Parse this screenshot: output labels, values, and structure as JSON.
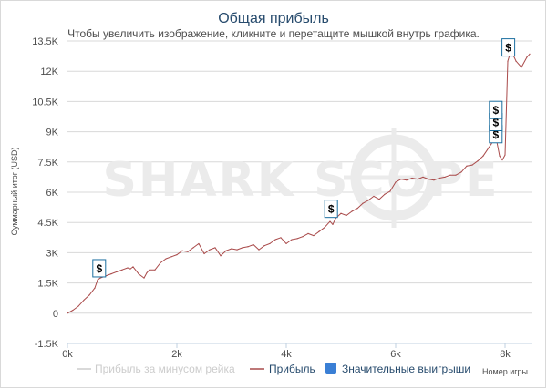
{
  "chart_data": {
    "type": "line",
    "title": "Общая прибыль",
    "subtitle": "Чтобы увеличить изображение, кликните и перетащите мышкой внутрь графика.",
    "ylabel": "Суммарный итог (USD)",
    "xlabel": "Номер игры",
    "watermark": "SHARK SCOPE",
    "xlim": [
      0,
      8500
    ],
    "ylim": [
      -1500,
      13500
    ],
    "x_ticks": [
      {
        "value": 0,
        "label": "0k"
      },
      {
        "value": 2000,
        "label": "2k"
      },
      {
        "value": 4000,
        "label": "4k"
      },
      {
        "value": 6000,
        "label": "6k"
      },
      {
        "value": 8000,
        "label": "8k"
      }
    ],
    "y_ticks": [
      {
        "value": -1500,
        "label": "-1.5K"
      },
      {
        "value": 0,
        "label": "0"
      },
      {
        "value": 1500,
        "label": "1.5K"
      },
      {
        "value": 3000,
        "label": "3K"
      },
      {
        "value": 4500,
        "label": "4.5K"
      },
      {
        "value": 6000,
        "label": "6K"
      },
      {
        "value": 7500,
        "label": "7.5K"
      },
      {
        "value": 9000,
        "label": "9K"
      },
      {
        "value": 10500,
        "label": "10.5K"
      },
      {
        "value": 12000,
        "label": "12K"
      },
      {
        "value": 13500,
        "label": "13.5K"
      }
    ],
    "grid": true,
    "series": [
      {
        "name": "Прибыль за минусом рейка",
        "color": "#cccccc",
        "visible": false,
        "x": [],
        "y": []
      },
      {
        "name": "Прибыль",
        "color": "#a94a4a",
        "visible": true,
        "x": [
          0,
          100,
          200,
          300,
          400,
          500,
          550,
          600,
          700,
          800,
          900,
          1000,
          1100,
          1150,
          1200,
          1300,
          1400,
          1450,
          1500,
          1600,
          1700,
          1800,
          1900,
          2000,
          2100,
          2200,
          2300,
          2400,
          2500,
          2600,
          2700,
          2800,
          2900,
          3000,
          3100,
          3200,
          3300,
          3400,
          3500,
          3600,
          3700,
          3800,
          3900,
          4000,
          4100,
          4200,
          4300,
          4400,
          4500,
          4600,
          4700,
          4800,
          4850,
          4900,
          5000,
          5100,
          5200,
          5300,
          5400,
          5500,
          5600,
          5700,
          5800,
          5900,
          6000,
          6100,
          6200,
          6300,
          6400,
          6500,
          6600,
          6700,
          6800,
          6900,
          7000,
          7100,
          7200,
          7300,
          7400,
          7500,
          7600,
          7700,
          7750,
          7800,
          7850,
          7900,
          7950,
          8000,
          8050,
          8100,
          8150,
          8200,
          8300,
          8400,
          8450
        ],
        "y": [
          0,
          150,
          350,
          650,
          900,
          1250,
          1650,
          1750,
          1850,
          1950,
          2050,
          2150,
          2250,
          2200,
          2300,
          1950,
          1750,
          2000,
          2150,
          2150,
          2500,
          2700,
          2800,
          2900,
          3100,
          3050,
          3250,
          3450,
          2950,
          3150,
          3250,
          2850,
          3100,
          3200,
          3150,
          3250,
          3300,
          3400,
          3150,
          3350,
          3450,
          3650,
          3750,
          3450,
          3650,
          3700,
          3800,
          3950,
          3850,
          4050,
          4250,
          4550,
          4400,
          4700,
          4950,
          4850,
          5050,
          5200,
          5450,
          5600,
          5800,
          5650,
          5900,
          6050,
          6500,
          6650,
          6600,
          6700,
          6650,
          6750,
          6650,
          6600,
          6700,
          6750,
          6850,
          6850,
          7000,
          7300,
          7350,
          7550,
          7800,
          8200,
          8400,
          8700,
          8500,
          7800,
          7600,
          7850,
          12500,
          12950,
          12800,
          12500,
          12200,
          12700,
          12850
        ]
      }
    ],
    "markers": [
      {
        "x": 580,
        "y": 1800,
        "label": "$"
      },
      {
        "x": 4820,
        "y": 4750,
        "label": "$"
      },
      {
        "x": 7830,
        "y": 8450,
        "label": "$"
      },
      {
        "x": 7830,
        "y": 9050,
        "label": "$"
      },
      {
        "x": 7830,
        "y": 9650,
        "label": "$"
      },
      {
        "x": 8060,
        "y": 12750,
        "label": "$"
      }
    ],
    "legend": {
      "placement": "bottom",
      "items": [
        {
          "label": "Прибыль за минусом рейка",
          "color": "#cccccc",
          "symbol": "line",
          "visible": false
        },
        {
          "label": "Прибыль",
          "color": "#a94a4a",
          "symbol": "line",
          "visible": true
        },
        {
          "label": "Значительные выигрыши",
          "color": "#3a7fd5",
          "symbol": "box",
          "visible": true
        }
      ]
    }
  }
}
